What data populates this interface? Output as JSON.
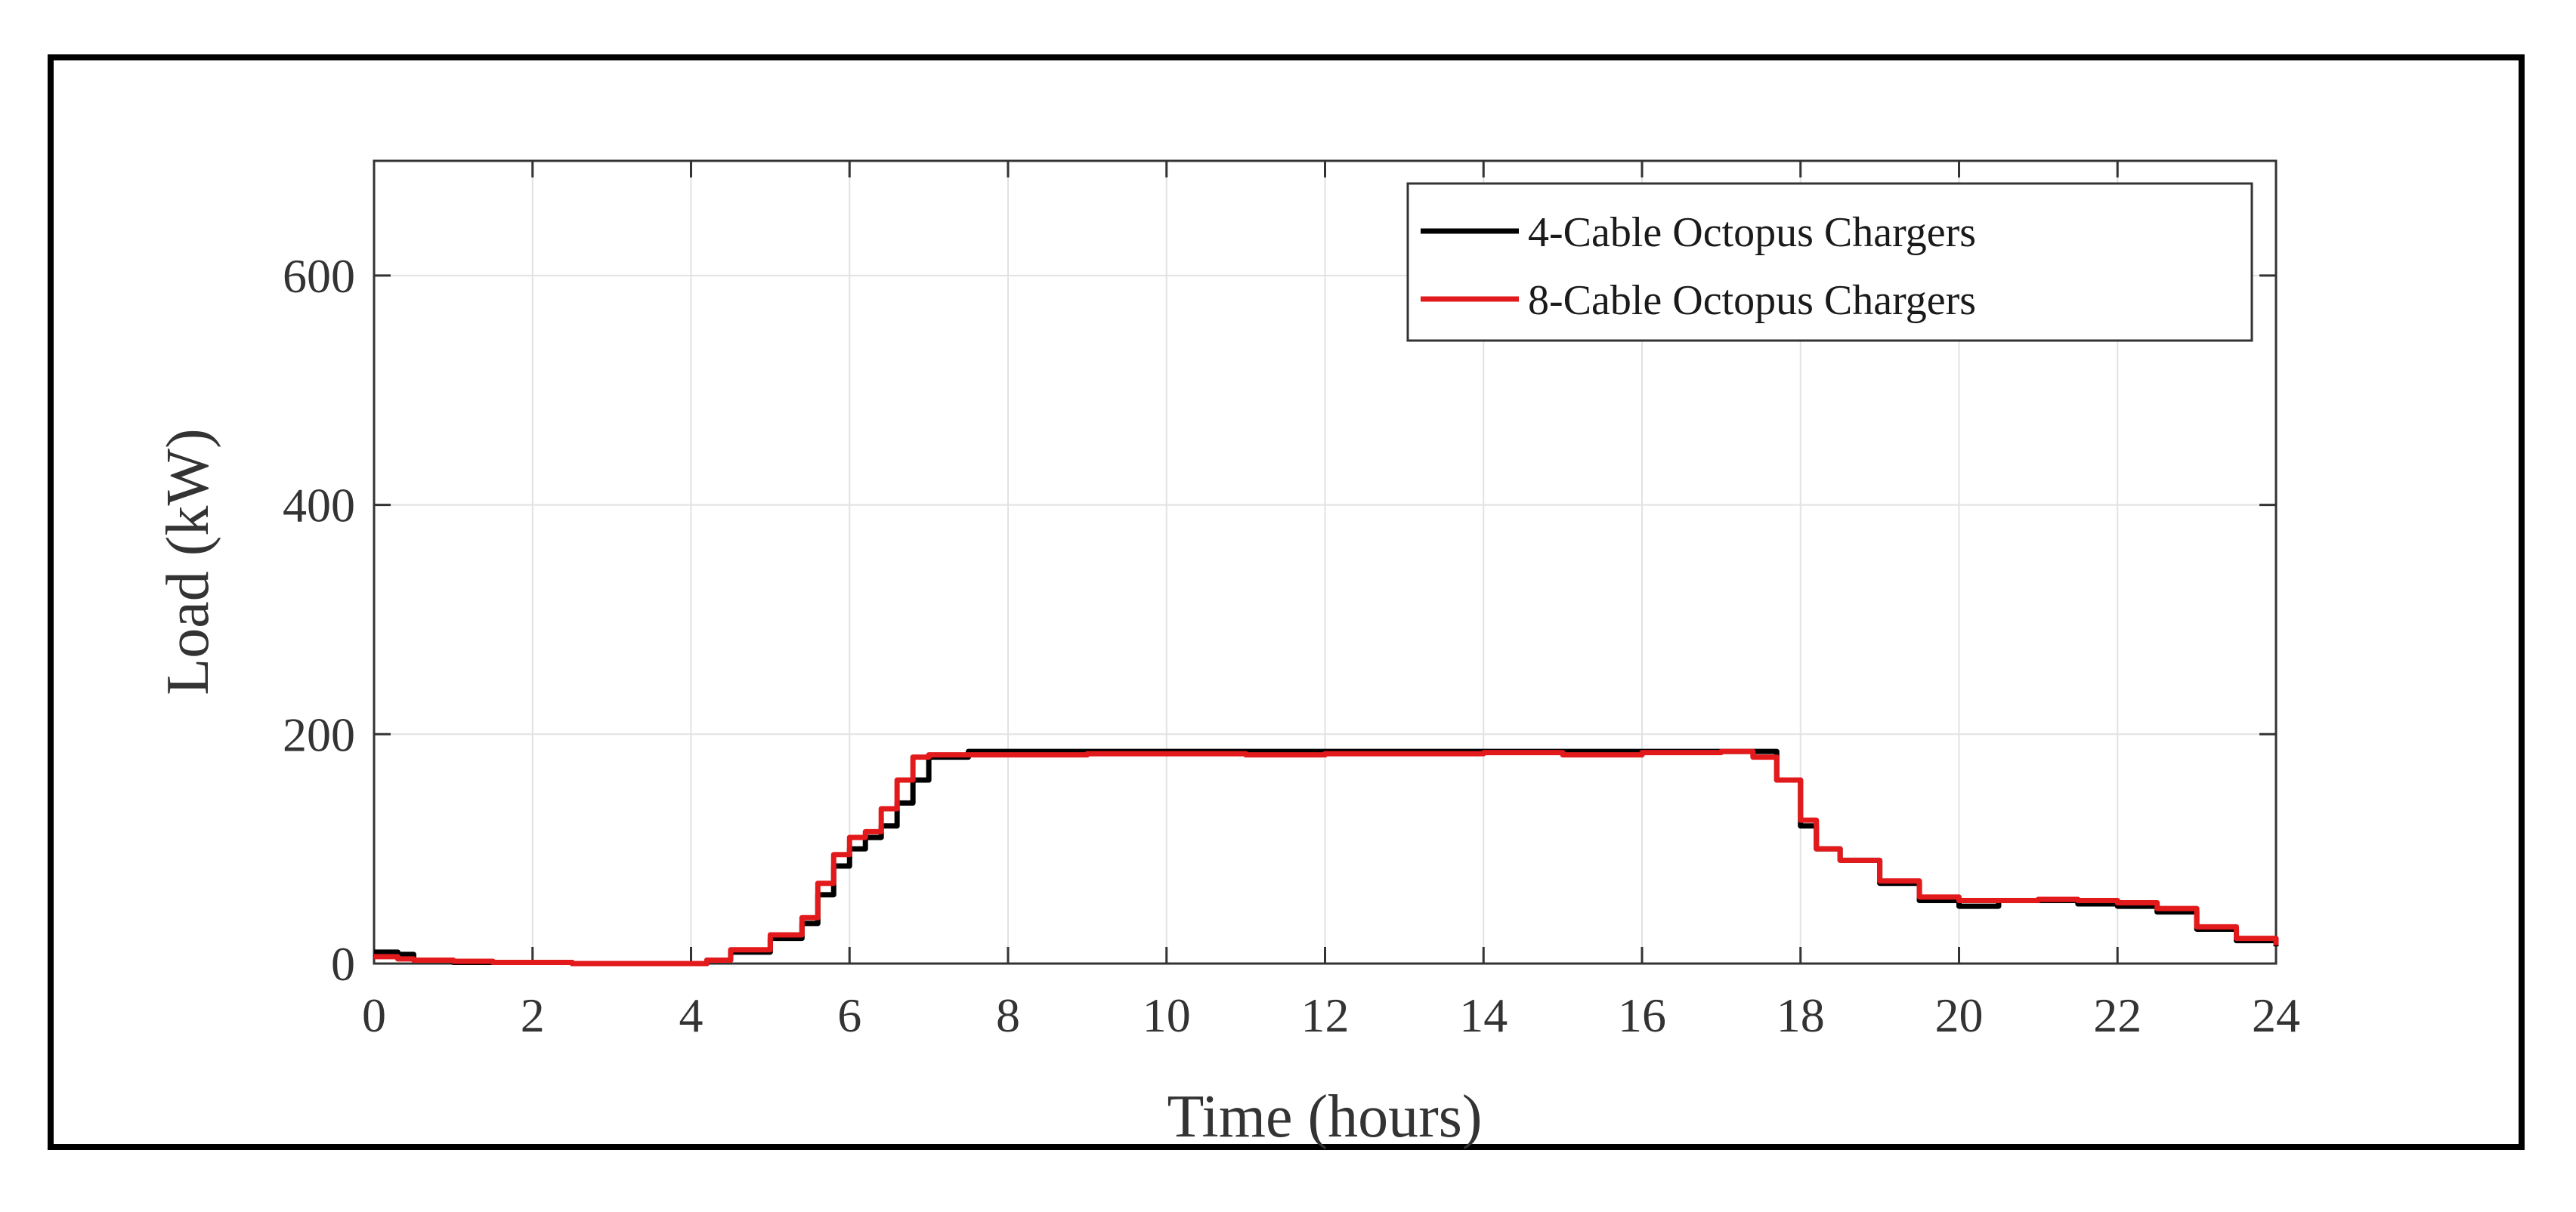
{
  "chart_data": {
    "type": "line",
    "title": "",
    "xlabel": "Time (hours)",
    "ylabel": "Load (kW)",
    "xlim": [
      0,
      24
    ],
    "ylim": [
      0,
      700
    ],
    "xticks": [
      0,
      2,
      4,
      6,
      8,
      10,
      12,
      14,
      16,
      18,
      20,
      22,
      24
    ],
    "yticks": [
      0,
      200,
      400,
      600
    ],
    "grid": true,
    "legend_position": "top-right",
    "series": [
      {
        "name": "4-Cable Octopus Chargers",
        "color": "#000000",
        "x": [
          0,
          0.3,
          0.5,
          1,
          1.5,
          2,
          2.5,
          3,
          3.5,
          4,
          4.2,
          4.5,
          5,
          5.4,
          5.6,
          5.8,
          6,
          6.2,
          6.4,
          6.6,
          6.8,
          7,
          7.5,
          8,
          9,
          10,
          11,
          12,
          13,
          14,
          15,
          16,
          17,
          17.4,
          17.7,
          18,
          18.2,
          18.5,
          19,
          19.5,
          20,
          20.5,
          21,
          21.5,
          22,
          22.5,
          23,
          23.5,
          24
        ],
        "y": [
          10,
          8,
          3,
          1,
          1,
          1,
          0,
          0,
          0,
          0,
          3,
          10,
          22,
          35,
          60,
          85,
          100,
          110,
          120,
          140,
          160,
          180,
          185,
          185,
          185,
          185,
          185,
          185,
          185,
          185,
          185,
          185,
          185,
          185,
          160,
          120,
          100,
          90,
          70,
          55,
          50,
          55,
          55,
          52,
          50,
          45,
          30,
          20,
          15
        ]
      },
      {
        "name": "8-Cable Octopus Chargers",
        "color": "#e31a1c",
        "x": [
          0,
          0.3,
          0.5,
          1,
          1.5,
          2,
          2.5,
          3,
          3.5,
          4,
          4.2,
          4.5,
          5,
          5.4,
          5.6,
          5.8,
          6,
          6.2,
          6.4,
          6.6,
          6.8,
          7,
          7.5,
          8,
          9,
          10,
          11,
          12,
          13,
          14,
          15,
          16,
          17,
          17.4,
          17.7,
          18,
          18.2,
          18.5,
          19,
          19.5,
          20,
          20.5,
          21,
          21.5,
          22,
          22.5,
          23,
          23.5,
          24
        ],
        "y": [
          6,
          4,
          3,
          2,
          1,
          1,
          0,
          0,
          0,
          0,
          3,
          12,
          25,
          40,
          70,
          95,
          110,
          115,
          135,
          160,
          180,
          182,
          182,
          182,
          183,
          183,
          182,
          183,
          183,
          184,
          182,
          184,
          185,
          180,
          160,
          125,
          100,
          90,
          72,
          58,
          55,
          55,
          56,
          55,
          53,
          48,
          32,
          22,
          16
        ]
      }
    ]
  }
}
